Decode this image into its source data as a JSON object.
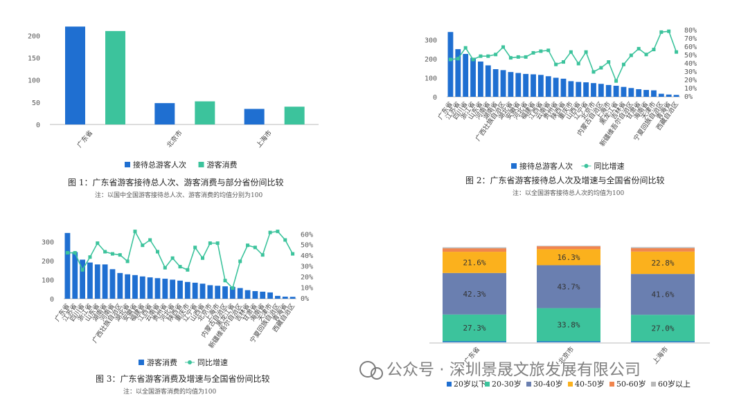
{
  "chart_data": [
    {
      "type": "bar",
      "title": "图 1：广东省游客接待总人次、游客消费与部分省份间比较",
      "note": "注：以国中全国游客接待总人次、游客消费的均值分别为100",
      "categories": [
        "广东省",
        "北京市",
        "上海市"
      ],
      "series": [
        {
          "name": "接待总游客人次",
          "color": "#1f6fd1",
          "values": [
            220,
            48,
            35
          ]
        },
        {
          "name": "游客消费",
          "color": "#3cc39c",
          "values": [
            210,
            52,
            40
          ]
        }
      ],
      "ylim": [
        0,
        230
      ],
      "yticks": [
        0,
        50,
        100,
        150,
        200
      ]
    },
    {
      "type": "bar+line",
      "title": "图 2：广东省游客接待总人次及增速与全国省份间比较",
      "note": "注：以全国游客接待总人次的均值为100",
      "categories": [
        "广东省",
        "江苏省",
        "四川省",
        "浙江省",
        "山东省",
        "河南省",
        "湖南省",
        "广西壮族自治区",
        "湖北省",
        "安徽省",
        "河北省",
        "福建省",
        "江西省",
        "云南省",
        "贵州省",
        "陕西省",
        "重庆市",
        "山西省",
        "辽宁省",
        "北京市",
        "内蒙古自治区",
        "上海市",
        "黑龙江省",
        "吉林省",
        "新疆维吾尔自治区",
        "甘肃省",
        "海南省",
        "天津市",
        "宁夏回族自治区",
        "青海省",
        "西藏自治区"
      ],
      "bar_series": {
        "name": "接待总游客人次",
        "color": "#1f6fd1",
        "values": [
          340,
          250,
          225,
          205,
          185,
          165,
          145,
          140,
          130,
          125,
          120,
          118,
          115,
          108,
          100,
          95,
          82,
          78,
          76,
          72,
          68,
          62,
          58,
          52,
          46,
          40,
          36,
          34,
          16,
          12,
          10
        ]
      },
      "line_series": {
        "name": "同比增速",
        "color": "#3cc39c",
        "values": [
          45,
          46,
          59,
          45,
          49,
          49,
          51,
          60,
          47,
          48,
          48,
          53,
          55,
          56,
          39,
          42,
          54,
          40,
          54,
          30,
          35,
          42,
          19,
          39,
          50,
          58,
          51,
          57,
          78,
          79,
          54
        ]
      },
      "ylim": [
        0,
        370
      ],
      "yticks": [
        0,
        100,
        200,
        300
      ],
      "y2lim": [
        0,
        85
      ],
      "y2ticks": [
        "0%",
        "10%",
        "20%",
        "30%",
        "40%",
        "50%",
        "60%",
        "70%",
        "80%"
      ]
    },
    {
      "type": "bar+line",
      "title": "图 3：广东省游客消费及增速与全国省份间比较",
      "note": "注：以全国游客消费的均值为100",
      "categories": [
        "广东省",
        "江苏省",
        "四川省",
        "浙江省",
        "山东省",
        "湖南省",
        "河南省",
        "广西壮族自治区",
        "湖北省",
        "安徽省",
        "福建省",
        "江西省",
        "云南省",
        "贵州省",
        "河北省",
        "陕西省",
        "重庆市",
        "辽宁省",
        "山西省",
        "北京市",
        "上海市",
        "内蒙古自治区",
        "黑龙江省",
        "新疆维吾尔自治区",
        "吉林省",
        "甘肃省",
        "海南省",
        "天津市",
        "宁夏回族自治区",
        "青海省",
        "西藏自治区"
      ],
      "bar_series": {
        "name": "游客消费",
        "color": "#1f6fd1",
        "values": [
          345,
          245,
          205,
          190,
          180,
          180,
          155,
          135,
          128,
          124,
          117,
          112,
          108,
          105,
          100,
          95,
          88,
          84,
          79,
          71,
          68,
          65,
          62,
          56,
          45,
          40,
          37,
          33,
          15,
          11,
          10
        ]
      },
      "line_series": {
        "name": "同比增速",
        "color": "#3cc39c",
        "values": [
          43,
          43,
          27,
          39,
          52,
          44,
          42,
          41,
          35,
          63,
          50,
          55,
          44,
          29,
          38,
          30,
          27,
          48,
          38,
          52,
          52,
          17,
          10,
          35,
          50,
          48,
          41,
          62,
          63,
          55,
          42
        ]
      },
      "ylim": [
        0,
        370
      ],
      "yticks": [
        0,
        100,
        200,
        300
      ],
      "y2lim": [
        0,
        66
      ],
      "y2ticks": [
        "0%",
        "10%",
        "20%",
        "30%",
        "40%",
        "50%",
        "60%"
      ]
    },
    {
      "type": "stacked-bar",
      "categories": [
        "广东省",
        "北京市",
        "上海市"
      ],
      "series": [
        {
          "name": "20岁以下",
          "color": "#1f6fd1",
          "values": [
            1.0,
            1.0,
            1.0
          ]
        },
        {
          "name": "20-30岁",
          "color": "#3cc39c",
          "values": [
            27.3,
            33.8,
            27.0
          ]
        },
        {
          "name": "30-40岁",
          "color": "#6a7fb0",
          "values": [
            42.3,
            43.7,
            41.6
          ]
        },
        {
          "name": "40-50岁",
          "color": "#fbb11d",
          "values": [
            21.6,
            16.3,
            22.8
          ]
        },
        {
          "name": "50-60岁",
          "color": "#f0854e",
          "values": [
            3.5,
            3.0,
            3.5
          ]
        },
        {
          "name": "60岁以上",
          "color": "#b8b8b8",
          "values": [
            1.0,
            0.5,
            1.0
          ]
        }
      ],
      "labels": {
        "20-30岁": [
          "27.3%",
          "33.8%",
          "27.0%"
        ],
        "30-40岁": [
          "42.3%",
          "43.7%",
          "41.6%"
        ],
        "40-50岁": [
          "21.6%",
          "16.3%",
          "22.8%"
        ]
      }
    }
  ],
  "watermark": "公众号 · 深圳景晟文旅发展有限公司"
}
